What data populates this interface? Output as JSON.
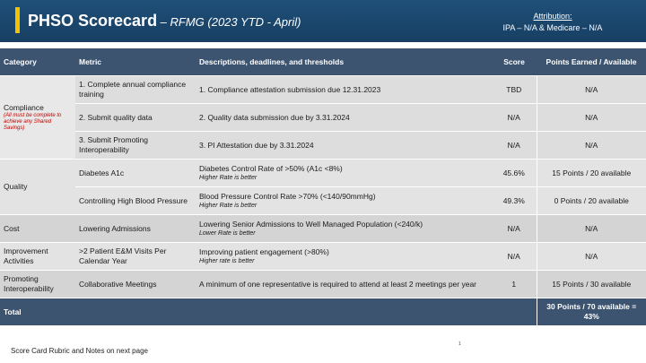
{
  "header": {
    "title": "PHSO Scorecard",
    "subtitle": " – RFMG (2023 YTD - April)",
    "attribution_label": "Attribution:",
    "attribution_value": "IPA – N/A & Medicare – N/A"
  },
  "columns": {
    "category": "Category",
    "metric": "Metric",
    "description": "Descriptions, deadlines, and thresholds",
    "score": "Score",
    "points": "Points Earned / Available"
  },
  "compliance": {
    "category": "Compliance",
    "note": "(All must be complete to achieve any Shared Savings)",
    "rows": [
      {
        "metric": "1. Complete annual compliance training",
        "description": "1. Compliance attestation submission due 12.31.2023",
        "score": "TBD",
        "points": "N/A"
      },
      {
        "metric": "2. Submit quality data",
        "description": "2. Quality data submission due by 3.31.2024",
        "score": "N/A",
        "points": "N/A"
      },
      {
        "metric": "3. Submit Promoting Interoperability",
        "description": "3. PI Attestation due by 3.31.2024",
        "score": "N/A",
        "points": "N/A"
      }
    ]
  },
  "quality": {
    "category": "Quality",
    "rows": [
      {
        "metric": "Diabetes A1c",
        "description": "Diabetes Control Rate of >50% (A1c <8%)",
        "note": "Higher Rate is better",
        "score": "45.6%",
        "points": "15 Points / 20 available"
      },
      {
        "metric": "Controlling High Blood Pressure",
        "description": "Blood Pressure Control Rate  >70% (<140/90mmHg)",
        "note": "Higher Rate is better",
        "score": "49.3%",
        "points": "0 Points  / 20 available"
      }
    ]
  },
  "cost": {
    "category": "Cost",
    "metric": " Lowering Admissions",
    "description": "Lowering Senior Admissions to Well Managed Population (<240/k)",
    "note": "Lower Rate is better",
    "score": "N/A",
    "points": "N/A"
  },
  "improvement": {
    "category": "Improvement Activities",
    "metric": " >2 Patient E&M Visits Per Calendar Year",
    "description": "Improving patient engagement (>80%)",
    "note": "Higher rate is better",
    "score": "N/A",
    "points": "N/A"
  },
  "interop": {
    "category": "Promoting Interoperability",
    "metric": "Collaborative Meetings",
    "description": "A minimum of one representative is required to attend at least 2 meetings per year",
    "score": "1",
    "points": "15 Points / 30 available"
  },
  "total": {
    "label": "Total",
    "points": "30 Points / 70 available = 43%"
  },
  "footer": {
    "text": "Score Card Rubric and Notes on next page",
    "page_number": "1"
  },
  "colors": {
    "header_bg": "#1f4f78",
    "accent": "#f2c200",
    "table_header": "#3d5470",
    "note_red": "#c00000"
  }
}
